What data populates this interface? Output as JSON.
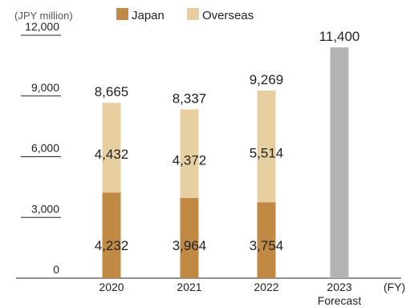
{
  "chart_data": {
    "type": "bar",
    "stacked": true,
    "unit_label": "(JPY million)",
    "x_unit_label": "(FY)",
    "categories": [
      "2020",
      "2021",
      "2022",
      "2023"
    ],
    "category_sublabels": [
      "",
      "",
      "",
      "Forecast"
    ],
    "series": [
      {
        "name": "Japan",
        "color": "#c08a45",
        "values": [
          4232,
          3964,
          3754,
          null
        ]
      },
      {
        "name": "Overseas",
        "color": "#e8cfa0",
        "values": [
          4432,
          4372,
          5514,
          null
        ]
      },
      {
        "name": "",
        "color": "#b3b3b3",
        "values": [
          null,
          null,
          null,
          11400
        ]
      }
    ],
    "totals": [
      8665,
      8337,
      9269,
      11400
    ],
    "ylim": [
      0,
      12000
    ],
    "yticks": [
      0,
      3000,
      6000,
      9000,
      12000
    ],
    "legend_position": "top",
    "grid": false,
    "value_format": "thousands-comma"
  }
}
